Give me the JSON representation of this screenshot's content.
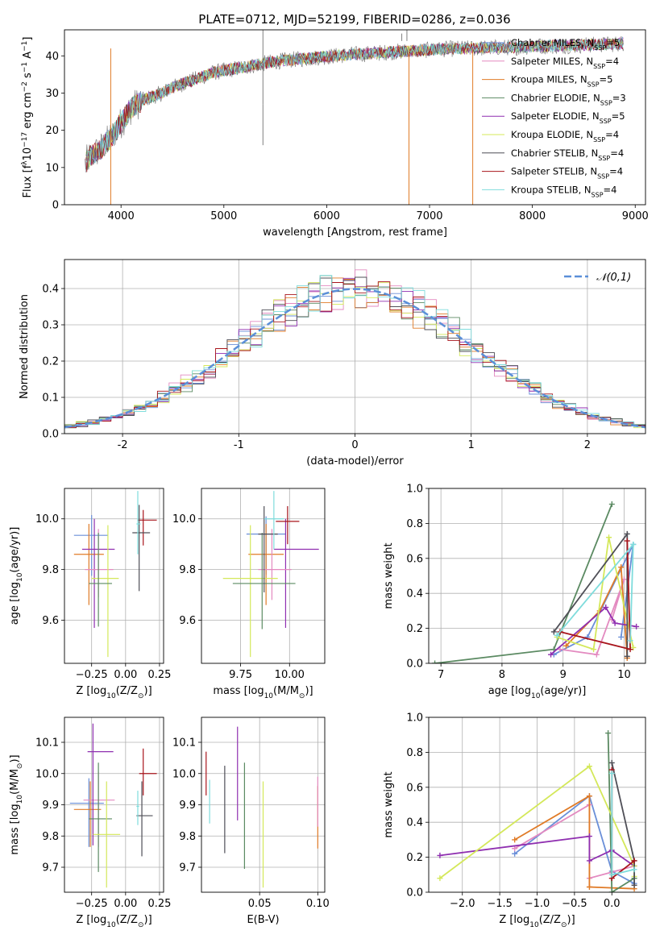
{
  "colors": {
    "Chabrier MILES": "#6a8fd8",
    "Salpeter MILES": "#e38ac0",
    "Kroupa MILES": "#e07b27",
    "Chabrier ELODIE": "#5b8a62",
    "Salpeter ELODIE": "#8f2fb0",
    "Kroupa ELODIE": "#d4e85a",
    "Chabrier STELIB": "#4f4f57",
    "Salpeter STELIB": "#a8141b",
    "Kroupa STELIB": "#7fdcdc",
    "gaussian": "#5b8fd8",
    "grid": "#b0b0b0"
  },
  "chart_data": [
    {
      "id": "spectrum",
      "type": "line",
      "title": "PLATE=0712, MJD=52199, FIBERID=0286, z=0.036",
      "xlabel": "wavelength [Angstrom, rest frame]",
      "ylabel_parts": [
        "Flux [f",
        "λ",
        "10",
        "−17",
        " erg cm",
        "−2",
        " s",
        "−1",
        " A",
        "−1",
        "]"
      ],
      "xlim": [
        3450,
        9100
      ],
      "ylim": [
        0,
        47
      ],
      "xticks": [
        4000,
        5000,
        6000,
        7000,
        8000,
        9000
      ],
      "yticks": [
        0,
        10,
        20,
        30,
        40
      ],
      "data_color": "#808080",
      "continuum": {
        "x": [
          3650,
          3700,
          3800,
          3900,
          4000,
          4100,
          4200,
          4300,
          4400,
          4500,
          4600,
          4700,
          4800,
          4900,
          5000,
          5200,
          5400,
          5600,
          5800,
          6000,
          6200,
          6400,
          6600,
          6800,
          7000,
          7200,
          7400,
          7600,
          7800,
          8000,
          8200,
          8400,
          8600,
          8800,
          8890
        ],
        "y": [
          11,
          13,
          15,
          18,
          22,
          26,
          28,
          29,
          30,
          31.5,
          32.5,
          33.5,
          34.5,
          35.5,
          36,
          37,
          38,
          38.8,
          39.3,
          39.8,
          40.3,
          40.6,
          41,
          41.3,
          41.6,
          41.9,
          42,
          42.2,
          42.3,
          42.5,
          42.7,
          42.8,
          43,
          43.2,
          43.5
        ]
      },
      "models_end_x": [
        8890,
        8890,
        7420,
        8890,
        8890,
        8890,
        8890,
        8890,
        8890
      ],
      "drops": [
        {
          "x": 3900,
          "model": "Kroupa MILES"
        },
        {
          "x": 6800,
          "model": "Kroupa MILES"
        },
        {
          "x": 7420,
          "model": "Kroupa MILES"
        }
      ],
      "spikes": [
        {
          "x": 5380,
          "y0": 27,
          "y1": 47
        },
        {
          "x": 5380,
          "y0": 16,
          "y1": 27
        },
        {
          "x": 6730,
          "y0": 44,
          "y1": 46
        },
        {
          "x": 6780,
          "y0": 44,
          "y1": 47
        }
      ],
      "series": [
        {
          "name": "Chabrier MILES",
          "nssp": "5"
        },
        {
          "name": "Salpeter MILES",
          "nssp": "4"
        },
        {
          "name": "Kroupa MILES",
          "nssp": "5"
        },
        {
          "name": "Chabrier ELODIE",
          "nssp": "3"
        },
        {
          "name": "Salpeter ELODIE",
          "nssp": "5"
        },
        {
          "name": "Kroupa ELODIE",
          "nssp": "4"
        },
        {
          "name": "Chabrier STELIB",
          "nssp": "4"
        },
        {
          "name": "Salpeter STELIB",
          "nssp": "4"
        },
        {
          "name": "Kroupa STELIB",
          "nssp": "4"
        }
      ],
      "legend_loc": "right"
    },
    {
      "id": "residuals",
      "type": "histogram",
      "xlabel": "(data-model)/error",
      "ylabel": "Normed distribution",
      "xlim": [
        -2.5,
        2.5
      ],
      "ylim": [
        0,
        0.48
      ],
      "xticks": [
        -2,
        -1,
        0,
        1,
        2
      ],
      "yticks": [
        0.0,
        0.1,
        0.2,
        0.3,
        0.4
      ],
      "bin_width": 0.1,
      "legend": "𝒩(0,1)",
      "grid": true
    },
    {
      "id": "z-age",
      "type": "errorbar",
      "xlabel_parts": [
        "Z [log",
        "10",
        "(Z/Z",
        "⊙",
        ")]"
      ],
      "ylabel_parts": [
        "age  [log",
        "10",
        "(age/yr)]"
      ],
      "xlim": [
        -0.45,
        0.28
      ],
      "ylim": [
        9.43,
        10.12
      ],
      "xticks": [
        -0.25,
        0.0,
        0.25
      ],
      "xtick_labels": [
        "−0.25",
        "0.00",
        "0.25"
      ],
      "yticks": [
        9.6,
        9.8,
        10.0
      ],
      "grid": true,
      "points": [
        {
          "model": "Chabrier MILES",
          "x": -0.25,
          "xerr": [
            0.13,
            0.12
          ],
          "y": 9.935,
          "yerr": [
            0.16,
            0.08
          ]
        },
        {
          "model": "Kroupa MILES",
          "x": -0.27,
          "xerr": [
            0.11,
            0.11
          ],
          "y": 9.86,
          "yerr": [
            0.2,
            0.12
          ]
        },
        {
          "model": "Salpeter ELODIE",
          "x": -0.23,
          "xerr": [
            0.09,
            0.15
          ],
          "y": 9.88,
          "yerr": [
            0.31,
            0.12
          ]
        },
        {
          "model": "Salpeter MILES",
          "x": -0.2,
          "xerr": [
            0.1,
            0.11
          ],
          "y": 9.8,
          "yerr": [
            0.11,
            0.16
          ]
        },
        {
          "model": "Kroupa ELODIE",
          "x": -0.13,
          "xerr": [
            0.12,
            0.08
          ],
          "y": 9.765,
          "yerr": [
            0.31,
            0.21
          ]
        },
        {
          "model": "Chabrier ELODIE",
          "x": -0.2,
          "xerr": [
            0.07,
            0.1
          ],
          "y": 9.745,
          "yerr": [
            0.17,
            0.2
          ]
        },
        {
          "model": "Salpeter STELIB",
          "x": 0.13,
          "xerr": [
            0.04,
            0.1
          ],
          "y": 9.995,
          "yerr": [
            0.1,
            0.04
          ]
        },
        {
          "model": "Chabrier STELIB",
          "x": 0.1,
          "xerr": [
            0.05,
            0.08
          ],
          "y": 9.945,
          "yerr": [
            0.23,
            0.11
          ]
        },
        {
          "model": "Kroupa STELIB",
          "x": 0.09,
          "xerr": [
            0.01,
            0.02
          ],
          "y": 9.98,
          "yerr": [
            0.12,
            0.13
          ]
        }
      ]
    },
    {
      "id": "mass-age",
      "type": "errorbar",
      "xlabel_parts": [
        "mass [log",
        "10",
        "(M/M",
        "⊙",
        ")]"
      ],
      "ylabel_parts": [],
      "xlim": [
        9.55,
        10.18
      ],
      "ylim": [
        9.43,
        10.12
      ],
      "xticks": [
        9.75,
        10.0
      ],
      "xtick_labels": [
        "9.75",
        "10.00"
      ],
      "yticks": [
        9.6,
        9.8,
        10.0
      ],
      "grid": true,
      "points": [
        {
          "model": "Chabrier MILES",
          "x": 9.88,
          "xerr": [
            0.1,
            0.1
          ],
          "y": 9.94,
          "yerr": [
            0.16,
            0.07
          ]
        },
        {
          "model": "Kroupa MILES",
          "x": 9.88,
          "xerr": [
            0.09,
            0.09
          ],
          "y": 9.86,
          "yerr": [
            0.2,
            0.12
          ]
        },
        {
          "model": "Salpeter ELODIE",
          "x": 9.98,
          "xerr": [
            0.06,
            0.17
          ],
          "y": 9.88,
          "yerr": [
            0.31,
            0.12
          ]
        },
        {
          "model": "Salpeter MILES",
          "x": 9.91,
          "xerr": [
            0.07,
            0.1
          ],
          "y": 9.8,
          "yerr": [
            0.12,
            0.16
          ]
        },
        {
          "model": "Kroupa ELODIE",
          "x": 9.8,
          "xerr": [
            0.14,
            0.14
          ],
          "y": 9.765,
          "yerr": [
            0.31,
            0.21
          ]
        },
        {
          "model": "Chabrier ELODIE",
          "x": 9.86,
          "xerr": [
            0.15,
            0.17
          ],
          "y": 9.745,
          "yerr": [
            0.18,
            0.2
          ]
        },
        {
          "model": "Salpeter STELIB",
          "x": 9.99,
          "xerr": [
            0.06,
            0.06
          ],
          "y": 9.99,
          "yerr": [
            0.09,
            0.06
          ]
        },
        {
          "model": "Chabrier STELIB",
          "x": 9.87,
          "xerr": [
            0.03,
            0.07
          ],
          "y": 9.94,
          "yerr": [
            0.23,
            0.11
          ]
        },
        {
          "model": "Kroupa STELIB",
          "x": 9.92,
          "xerr": [
            0.05,
            0.05
          ],
          "y": 10.0,
          "yerr": [
            0.12,
            0.11
          ]
        }
      ]
    },
    {
      "id": "age-weight",
      "type": "line",
      "xlabel_parts": [
        "age  [log",
        "10",
        "(age/yr)]"
      ],
      "ylabel": "mass weight",
      "xlim": [
        6.8,
        10.35
      ],
      "ylim": [
        0,
        1.0
      ],
      "xticks": [
        7,
        8,
        9,
        10
      ],
      "yticks": [
        0.0,
        0.2,
        0.4,
        0.6,
        0.8,
        1.0
      ],
      "grid": true,
      "series": [
        {
          "model": "Chabrier MILES",
          "x": [
            8.85,
            9.4,
            10.15,
            9.95
          ],
          "y": [
            0.05,
            0.15,
            0.68,
            0.15
          ]
        },
        {
          "model": "Salpeter MILES",
          "x": [
            8.95,
            9.55,
            10.0,
            9.8
          ],
          "y": [
            0.08,
            0.05,
            0.48,
            0.25
          ]
        },
        {
          "model": "Kroupa MILES",
          "x": [
            9.05,
            9.6,
            9.95,
            10.05
          ],
          "y": [
            0.1,
            0.3,
            0.55,
            0.03
          ]
        },
        {
          "model": "Chabrier ELODIE",
          "x": [
            6.9,
            8.85,
            9.8
          ],
          "y": [
            0.0,
            0.08,
            0.91
          ]
        },
        {
          "model": "Salpeter ELODIE",
          "x": [
            8.8,
            9.7,
            9.85,
            10.2
          ],
          "y": [
            0.05,
            0.32,
            0.23,
            0.21
          ]
        },
        {
          "model": "Kroupa ELODIE",
          "x": [
            8.9,
            9.5,
            9.75,
            10.15
          ],
          "y": [
            0.15,
            0.08,
            0.72,
            0.09
          ]
        },
        {
          "model": "Chabrier STELIB",
          "x": [
            8.85,
            10.05,
            10.05
          ],
          "y": [
            0.18,
            0.74,
            0.04
          ]
        },
        {
          "model": "Salpeter STELIB",
          "x": [
            8.95,
            10.1,
            10.05
          ],
          "y": [
            0.18,
            0.08,
            0.7
          ]
        },
        {
          "model": "Kroupa STELIB",
          "x": [
            8.9,
            10.15,
            10.1
          ],
          "y": [
            0.16,
            0.68,
            0.13
          ]
        }
      ]
    },
    {
      "id": "z-mass",
      "type": "errorbar",
      "xlabel_parts": [
        "Z [log",
        "10",
        "(Z/Z",
        "⊙",
        ")]"
      ],
      "ylabel_parts": [
        "mass [log",
        "10",
        "(M/M",
        "⊙",
        ")]"
      ],
      "xlim": [
        -0.45,
        0.28
      ],
      "ylim": [
        9.62,
        10.18
      ],
      "xticks": [
        -0.25,
        0.0,
        0.25
      ],
      "xtick_labels": [
        "−0.25",
        "0.00",
        "0.25"
      ],
      "yticks": [
        9.7,
        9.8,
        9.9,
        10.0,
        10.1
      ],
      "grid": true,
      "points": [
        {
          "model": "Chabrier MILES",
          "x": -0.27,
          "xerr": [
            0.14,
            0.11
          ],
          "y": 9.905,
          "yerr": [
            0.14,
            0.08
          ]
        },
        {
          "model": "Kroupa MILES",
          "x": -0.26,
          "xerr": [
            0.12,
            0.08
          ],
          "y": 9.885,
          "yerr": [
            0.12,
            0.09
          ]
        },
        {
          "model": "Salpeter MILES",
          "x": -0.2,
          "xerr": [
            0.11,
            0.12
          ],
          "y": 9.915,
          "yerr": [
            0.15,
            0.09
          ]
        },
        {
          "model": "Salpeter ELODIE",
          "x": -0.24,
          "xerr": [
            0.04,
            0.15
          ],
          "y": 10.07,
          "yerr": [
            0.3,
            0.09
          ]
        },
        {
          "model": "Chabrier ELODIE",
          "x": -0.2,
          "xerr": [
            0.07,
            0.1
          ],
          "y": 9.855,
          "yerr": [
            0.17,
            0.18
          ]
        },
        {
          "model": "Kroupa ELODIE",
          "x": -0.14,
          "xerr": [
            0.1,
            0.1
          ],
          "y": 9.805,
          "yerr": [
            0.17,
            0.17
          ]
        },
        {
          "model": "Salpeter STELIB",
          "x": 0.13,
          "xerr": [
            0.03,
            0.1
          ],
          "y": 10.0,
          "yerr": [
            0.07,
            0.08
          ]
        },
        {
          "model": "Chabrier STELIB",
          "x": 0.12,
          "xerr": [
            0.04,
            0.08
          ],
          "y": 9.865,
          "yerr": [
            0.13,
            0.11
          ]
        },
        {
          "model": "Kroupa STELIB",
          "x": 0.09,
          "xerr": [
            0.01,
            0.01
          ],
          "y": 9.895,
          "yerr": [
            0.06,
            0.05
          ]
        }
      ]
    },
    {
      "id": "ebv-mass",
      "type": "errorbar",
      "xlabel": "E(B-V)",
      "ylabel_parts": [],
      "xlim": [
        0.0,
        0.106
      ],
      "ylim": [
        9.62,
        10.18
      ],
      "xticks": [
        0.05,
        0.1
      ],
      "xtick_labels": [
        "0.05",
        "0.10"
      ],
      "yticks": [
        9.7,
        9.8,
        9.9,
        10.0,
        10.1
      ],
      "grid": true,
      "points": [
        {
          "model": "Salpeter STELIB",
          "x": 0.004,
          "y": 10.0,
          "yerr": [
            0.07,
            0.07
          ]
        },
        {
          "model": "Kroupa STELIB",
          "x": 0.007,
          "y": 9.91,
          "yerr": [
            0.07,
            0.07
          ]
        },
        {
          "model": "Salpeter ELODIE",
          "x": 0.031,
          "y": 10.0,
          "yerr": [
            0.15,
            0.15
          ]
        },
        {
          "model": "Chabrier STELIB",
          "x": 0.02,
          "y": 9.885,
          "yerr": [
            0.14,
            0.14
          ]
        },
        {
          "model": "Chabrier ELODIE",
          "x": 0.037,
          "y": 9.865,
          "yerr": [
            0.17,
            0.17
          ]
        },
        {
          "model": "Kroupa ELODIE",
          "x": 0.053,
          "y": 9.805,
          "yerr": [
            0.17,
            0.17
          ]
        },
        {
          "model": "Kroupa MILES",
          "x": 0.1,
          "y": 9.86,
          "yerr": [
            0.1,
            0.1
          ]
        },
        {
          "model": "Salpeter MILES",
          "x": 0.1,
          "y": 9.91,
          "yerr": [
            0.08,
            0.08
          ]
        }
      ]
    },
    {
      "id": "z-weight",
      "type": "line",
      "xlabel_parts": [
        "Z [log",
        "10",
        "(Z/Z",
        "⊙",
        ")]"
      ],
      "ylabel": "mass weight",
      "xlim": [
        -2.45,
        0.45
      ],
      "ylim": [
        0,
        1.0
      ],
      "xticks": [
        -2.0,
        -1.5,
        -1.0,
        -0.5,
        0.0
      ],
      "xtick_labels": [
        "−2.0",
        "−1.5",
        "−1.0",
        "−0.5",
        "0.0"
      ],
      "yticks": [
        0.0,
        0.2,
        0.4,
        0.6,
        0.8,
        1.0
      ],
      "grid": true,
      "series": [
        {
          "model": "Chabrier MILES",
          "x": [
            -1.3,
            -0.3,
            0.0,
            0.3
          ],
          "y": [
            0.22,
            0.55,
            0.12,
            0.05
          ]
        },
        {
          "model": "Salpeter MILES",
          "x": [
            -1.3,
            -0.3,
            -0.3,
            0.3
          ],
          "y": [
            0.25,
            0.5,
            0.08,
            0.15
          ]
        },
        {
          "model": "Kroupa MILES",
          "x": [
            -1.3,
            -0.3,
            -0.3,
            0.3
          ],
          "y": [
            0.3,
            0.55,
            0.03,
            0.02
          ]
        },
        {
          "model": "Chabrier ELODIE",
          "x": [
            -0.05,
            0.0,
            0.3
          ],
          "y": [
            0.91,
            0.0,
            0.08
          ]
        },
        {
          "model": "Salpeter ELODIE",
          "x": [
            -2.3,
            -0.3,
            -0.3,
            0.0,
            0.3
          ],
          "y": [
            0.21,
            0.32,
            0.18,
            0.24,
            0.15
          ]
        },
        {
          "model": "Kroupa ELODIE",
          "x": [
            -2.3,
            -0.3,
            0.3,
            0.3
          ],
          "y": [
            0.08,
            0.72,
            0.15,
            0.09
          ]
        },
        {
          "model": "Chabrier STELIB",
          "x": [
            0.0,
            0.3,
            0.3
          ],
          "y": [
            0.74,
            0.18,
            0.04
          ]
        },
        {
          "model": "Salpeter STELIB",
          "x": [
            0.0,
            0.0,
            0.3
          ],
          "y": [
            0.7,
            0.08,
            0.18
          ]
        },
        {
          "model": "Kroupa STELIB",
          "x": [
            0.0,
            0.0,
            0.3
          ],
          "y": [
            0.68,
            0.1,
            0.13
          ]
        }
      ]
    }
  ]
}
